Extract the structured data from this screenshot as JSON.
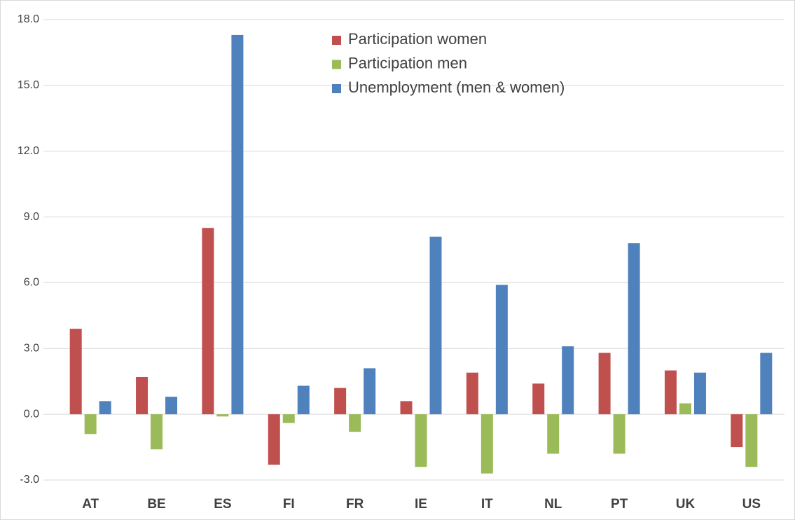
{
  "chart_data": {
    "type": "bar",
    "categories": [
      "AT",
      "BE",
      "ES",
      "FI",
      "FR",
      "IE",
      "IT",
      "NL",
      "PT",
      "UK",
      "US"
    ],
    "series": [
      {
        "name": "Participation women",
        "color": "#c0504d",
        "values": [
          3.9,
          1.7,
          8.5,
          -2.3,
          1.2,
          0.6,
          1.9,
          1.4,
          2.8,
          2.0,
          -1.5
        ]
      },
      {
        "name": "Participation men",
        "color": "#9bbb59",
        "values": [
          -0.9,
          -1.6,
          -0.1,
          -0.4,
          -0.8,
          -2.4,
          -2.7,
          -1.8,
          -1.8,
          0.5,
          -2.4
        ]
      },
      {
        "name": "Unemployment (men & women)",
        "color": "#4f81bd",
        "values": [
          0.6,
          0.8,
          17.3,
          1.3,
          2.1,
          8.1,
          5.9,
          3.1,
          7.8,
          1.9,
          2.8
        ]
      }
    ],
    "ylim": [
      -3,
      18
    ],
    "yticks": [
      {
        "value": -3,
        "label": "-3.0"
      },
      {
        "value": 0,
        "label": "0.0"
      },
      {
        "value": 3,
        "label": "3.0"
      },
      {
        "value": 6,
        "label": "6.0"
      },
      {
        "value": 9,
        "label": "9.0"
      },
      {
        "value": 12,
        "label": "12.0"
      },
      {
        "value": 15,
        "label": "15.0"
      },
      {
        "value": 18,
        "label": "18.0"
      }
    ],
    "grid": true,
    "legend": "top"
  }
}
